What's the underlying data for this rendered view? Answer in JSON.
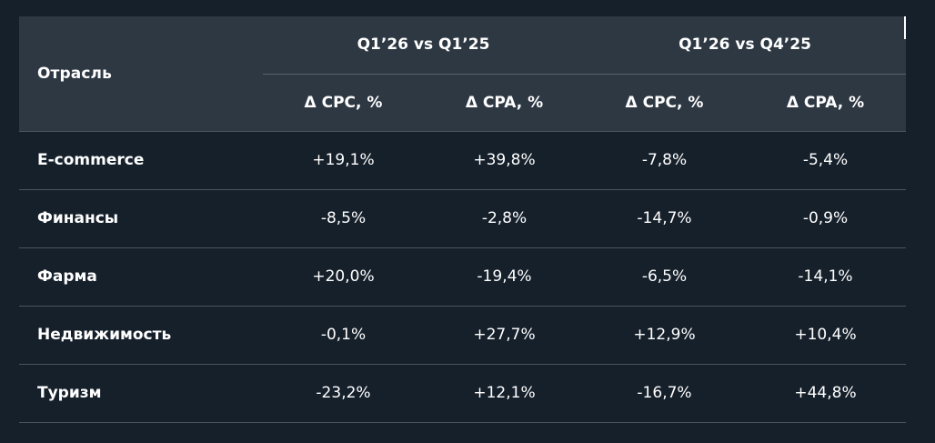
{
  "table": {
    "header": {
      "industry_label": "Отрасль",
      "groups": [
        {
          "label": "Q1’26 vs Q1’25"
        },
        {
          "label": "Q1’26 vs Q4’25"
        }
      ],
      "subcolumns": [
        "Δ CPC, %",
        "Δ CPA, %",
        "Δ CPC, %",
        "Δ CPA, %"
      ]
    },
    "rows": [
      {
        "industry": "E-commerce",
        "values": [
          "+19,1%",
          "+39,8%",
          "-7,8%",
          "-5,4%"
        ]
      },
      {
        "industry": "Финансы",
        "values": [
          "-8,5%",
          "-2,8%",
          "-14,7%",
          "-0,9%"
        ]
      },
      {
        "industry": "Фарма",
        "values": [
          "+20,0%",
          "-19,4%",
          "-6,5%",
          "-14,1%"
        ]
      },
      {
        "industry": "Недвижимость",
        "values": [
          "-0,1%",
          "+27,7%",
          "+12,9%",
          "+10,4%"
        ]
      },
      {
        "industry": "Туризм",
        "values": [
          "-23,2%",
          "+12,1%",
          "-16,7%",
          "+44,8%"
        ]
      }
    ]
  },
  "colors": {
    "background": "#16202b",
    "header_background": "#2d3843",
    "divider": "#4a545e",
    "text": "#ffffff"
  }
}
